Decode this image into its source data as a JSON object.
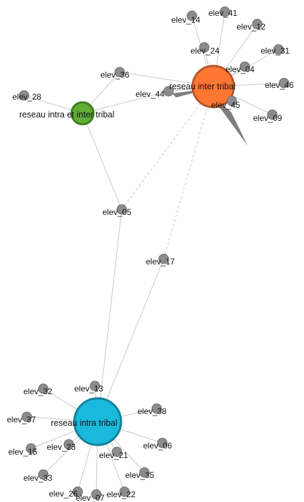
{
  "network": {
    "colors": {
      "hub_inter": "#ff7733",
      "hub_inter_border": "#b9542a",
      "hub_intra": "#1ab8dc",
      "hub_intra_border": "#137f99",
      "hub_mixed": "#5fae33",
      "hub_mixed_border": "#3f7d21",
      "leaf": "#8c8c8c",
      "edge": "#c8c8c8",
      "wedge": "#7f7f7f"
    },
    "hubs": [
      {
        "id": "inter",
        "label": "reseau inter tribal"
      },
      {
        "id": "intra",
        "label": "reseau intra tribal"
      },
      {
        "id": "mixed",
        "label": "reseau intra et inter tribal"
      }
    ],
    "leaves": [
      {
        "id": "elev_14",
        "label": "elev_14",
        "hub": "inter"
      },
      {
        "id": "elev_41",
        "label": "elev_41",
        "hub": "inter"
      },
      {
        "id": "elev_12",
        "label": "elev_12",
        "hub": "inter"
      },
      {
        "id": "elev_24",
        "label": "elev_24",
        "hub": "inter"
      },
      {
        "id": "elev_31",
        "label": "elev_31",
        "hub": "inter"
      },
      {
        "id": "elev_04",
        "label": "elev_04",
        "hub": "inter"
      },
      {
        "id": "elev_46",
        "label": "elev_46",
        "hub": "inter"
      },
      {
        "id": "elev_45",
        "label": "elev_45",
        "hub": "inter"
      },
      {
        "id": "elev_09",
        "label": "elev_09",
        "hub": "inter"
      },
      {
        "id": "elev_36",
        "label": "elev_36",
        "hub": "both-inter-mixed"
      },
      {
        "id": "elev_44",
        "label": "elev_44",
        "hub": "both-inter-mixed"
      },
      {
        "id": "elev_28",
        "label": "elev_28",
        "hub": "mixed"
      },
      {
        "id": "elev_05",
        "label": "elev_05",
        "hub": "bridge"
      },
      {
        "id": "elev_17",
        "label": "elev_17",
        "hub": "bridge"
      },
      {
        "id": "elev_13",
        "label": "elev_13",
        "hub": "intra"
      },
      {
        "id": "elev_32",
        "label": "elev_32",
        "hub": "intra"
      },
      {
        "id": "elev_38",
        "label": "elev_38",
        "hub": "intra"
      },
      {
        "id": "elev_37",
        "label": "elev_37",
        "hub": "intra"
      },
      {
        "id": "elev_06",
        "label": "elev_06",
        "hub": "intra"
      },
      {
        "id": "elev_15",
        "label": "elev_15",
        "hub": "intra"
      },
      {
        "id": "elev_23",
        "label": "elev_23",
        "hub": "intra"
      },
      {
        "id": "elev_21",
        "label": "elev_21",
        "hub": "intra"
      },
      {
        "id": "elev_33",
        "label": "elev_33",
        "hub": "intra"
      },
      {
        "id": "elev_35",
        "label": "elev_35",
        "hub": "intra"
      },
      {
        "id": "elev_26",
        "label": "elev_26",
        "hub": "intra"
      },
      {
        "id": "elev_07",
        "label": "elev_07",
        "hub": "intra"
      },
      {
        "id": "elev_22",
        "label": "elev_22",
        "hub": "intra"
      }
    ]
  }
}
